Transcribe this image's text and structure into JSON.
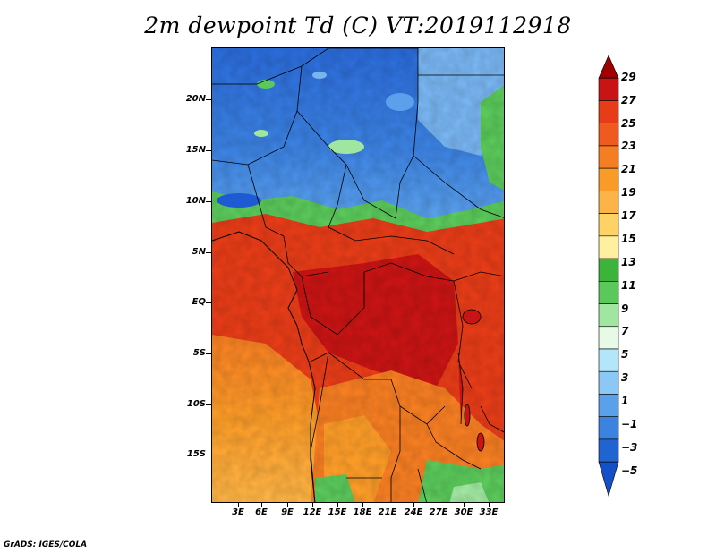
{
  "title": "2m dewpoint Td (C) VT:2019112918",
  "credit": "GrADS: IGES/COLA",
  "map": {
    "region": "Central and Southern Africa",
    "lat_labels": [
      "20N",
      "15N",
      "10N",
      "5N",
      "EQ",
      "5S",
      "10S",
      "15S"
    ],
    "lat_values": [
      20,
      15,
      10,
      5,
      0,
      -5,
      -10,
      -15
    ],
    "lon_labels": [
      "3E",
      "6E",
      "9E",
      "12E",
      "15E",
      "18E",
      "21E",
      "24E",
      "27E",
      "30E",
      "33E"
    ],
    "lon_values": [
      3,
      6,
      9,
      12,
      15,
      18,
      21,
      24,
      27,
      30,
      33
    ]
  },
  "colorbar": {
    "labels": [
      "29",
      "27",
      "25",
      "23",
      "21",
      "19",
      "17",
      "15",
      "13",
      "11",
      "9",
      "7",
      "5",
      "3",
      "1",
      "−1",
      "−3",
      "−5"
    ],
    "colors": [
      "#a00000",
      "#c81414",
      "#e63c18",
      "#f05a1e",
      "#f57d22",
      "#fa9b28",
      "#fcb446",
      "#fed264",
      "#fff0a0",
      "#3cb43c",
      "#5ac85a",
      "#a0e6a0",
      "#e6fae6",
      "#b4e6fa",
      "#8cc8f5",
      "#5aa0eb",
      "#3c82e1",
      "#2064d2",
      "#1450c8"
    ]
  },
  "palette": {
    "deep_blue": "#1e5ad2",
    "blue": "#3c82e1",
    "light_blue": "#78b4f0",
    "green": "#5ac85a",
    "red": "#e63c18",
    "dark_red": "#c81414",
    "orange": "#f57d22",
    "light_orange": "#fcb446",
    "border": "#000000"
  }
}
